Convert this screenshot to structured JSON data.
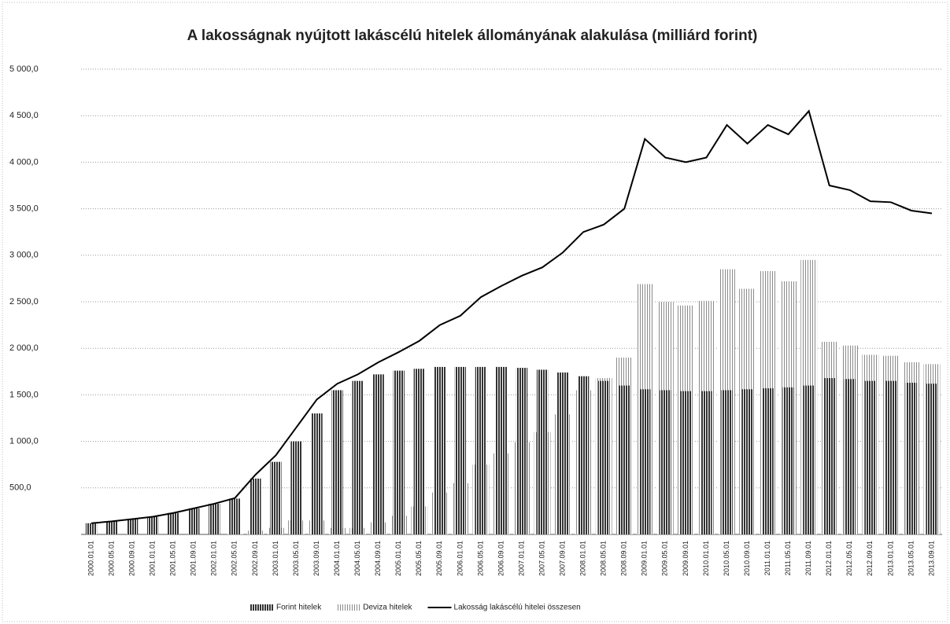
{
  "chart_data": {
    "type": "bar",
    "title": "A lakosságnak nyújtott lakáscélú hitelek állományának alakulása (milliárd forint)",
    "categories": [
      "2000.01.01",
      "2000.05.01",
      "2000.09.01",
      "2001.01.01",
      "2001.05.01",
      "2001.09.01",
      "2002.01.01",
      "2002.05.01",
      "2002.09.01",
      "2003.01.01",
      "2003.05.01",
      "2003.09.01",
      "2004.01.01",
      "2004.05.01",
      "2004.09.01",
      "2005.01.01",
      "2005.05.01",
      "2005.09.01",
      "2006.01.01",
      "2006.05.01",
      "2006.09.01",
      "2007.01.01",
      "2007.05.01",
      "2007.09.01",
      "2008.01.01",
      "2008.05.01",
      "2008.09.01",
      "2009.01.01",
      "2009.05.01",
      "2009.09.01",
      "2010.01.01",
      "2010.05.01",
      "2010.09.01",
      "2011.01.01",
      "2011.05.01",
      "2011.09.01",
      "2012.01.01",
      "2012.05.01",
      "2012.09.01",
      "2013.01.01",
      "2013.05.01",
      "2013.09.01"
    ],
    "series": [
      {
        "name": "Forint hitelek",
        "color": "#333333",
        "values": [
          120,
          140,
          165,
          190,
          230,
          280,
          330,
          385,
          600,
          780,
          1000,
          1300,
          1550,
          1650,
          1720,
          1760,
          1780,
          1800,
          1800,
          1800,
          1800,
          1790,
          1770,
          1740,
          1700,
          1650,
          1600,
          1560,
          1550,
          1540,
          1540,
          1550,
          1560,
          1570,
          1580,
          1600,
          1680,
          1670,
          1650,
          1650,
          1630,
          1620
        ]
      },
      {
        "name": "Deviza hitelek",
        "color": "#8a8a8a",
        "values": [
          0,
          0,
          0,
          0,
          0,
          0,
          0,
          5,
          40,
          70,
          150,
          150,
          70,
          70,
          130,
          200,
          300,
          450,
          550,
          750,
          870,
          990,
          1100,
          1290,
          1550,
          1680,
          1900,
          2690,
          2500,
          2460,
          2510,
          2850,
          2640,
          2830,
          2720,
          2950,
          2070,
          2030,
          1930,
          1920,
          1850,
          1830
        ]
      },
      {
        "name": "Lakosság lakáscélú hitelei összesen",
        "color": "#000000",
        "type": "line",
        "values": [
          120,
          140,
          165,
          190,
          230,
          280,
          330,
          390,
          640,
          850,
          1150,
          1450,
          1620,
          1720,
          1850,
          1960,
          2080,
          2250,
          2350,
          2550,
          2670,
          2780,
          2870,
          3030,
          3250,
          3330,
          3500,
          4250,
          4050,
          4000,
          4050,
          4400,
          4200,
          4400,
          4300,
          4550,
          3750,
          3700,
          3580,
          3570,
          3480,
          3450
        ]
      }
    ],
    "ylim": [
      0,
      5000
    ],
    "yticks": [
      {
        "value": 500,
        "label": "500,0"
      },
      {
        "value": 1000,
        "label": "1 000,0"
      },
      {
        "value": 1500,
        "label": "1 500,0"
      },
      {
        "value": 2000,
        "label": "2 000,0"
      },
      {
        "value": 2500,
        "label": "2 500,0"
      },
      {
        "value": 3000,
        "label": "3 000,0"
      },
      {
        "value": 3500,
        "label": "3 500,0"
      },
      {
        "value": 4000,
        "label": "4 000,0"
      },
      {
        "value": 4500,
        "label": "4 500,0"
      },
      {
        "value": 5000,
        "label": "5 000,0"
      }
    ],
    "grid": true,
    "legend": "bottom"
  }
}
